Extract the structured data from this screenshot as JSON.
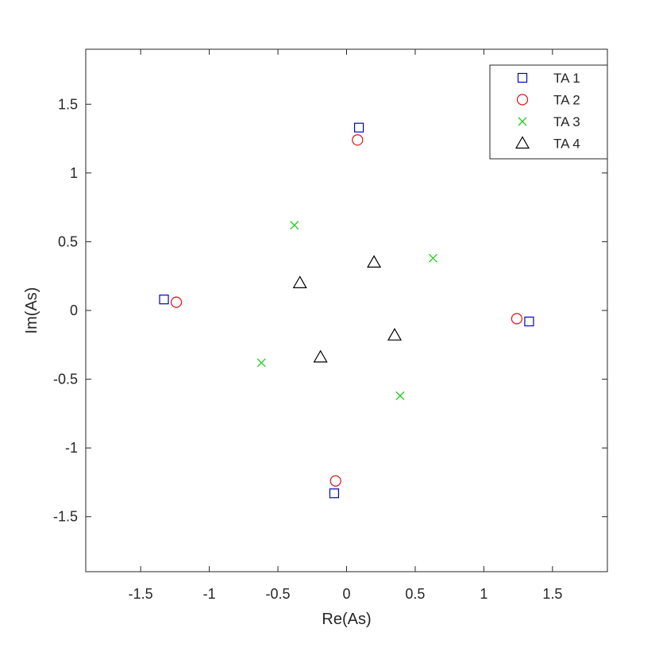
{
  "chart_data": {
    "type": "scatter",
    "title": "",
    "xlabel": "Re(As)",
    "ylabel": "Im(As)",
    "xlim": [
      -1.9,
      1.9
    ],
    "ylim": [
      -1.9,
      1.9
    ],
    "xticks": [
      -1.5,
      -1,
      -0.5,
      0,
      0.5,
      1,
      1.5
    ],
    "xtick_labels": [
      "-1.5",
      "-1",
      "-0.5",
      "0",
      "0.5",
      "1",
      "1.5"
    ],
    "yticks": [
      -1.5,
      -1,
      -0.5,
      0,
      0.5,
      1,
      1.5
    ],
    "ytick_labels": [
      "-1.5",
      "-1",
      "-0.5",
      "0",
      "0.5",
      "1",
      "1.5"
    ],
    "grid": false,
    "legend_position": "top-right",
    "series": [
      {
        "name": "TA 1",
        "marker": "square",
        "color": "#0000cc",
        "points": [
          [
            0.09,
            1.33
          ],
          [
            -1.33,
            0.08
          ],
          [
            -0.09,
            -1.33
          ],
          [
            1.33,
            -0.08
          ]
        ]
      },
      {
        "name": "TA 2",
        "marker": "circle",
        "color": "#e01010",
        "points": [
          [
            0.08,
            1.24
          ],
          [
            -1.24,
            0.06
          ],
          [
            -0.08,
            -1.24
          ],
          [
            1.24,
            -0.06
          ]
        ]
      },
      {
        "name": "TA 3",
        "marker": "x",
        "color": "#22cc22",
        "points": [
          [
            -0.38,
            0.62
          ],
          [
            0.63,
            0.38
          ],
          [
            -0.62,
            -0.38
          ],
          [
            0.39,
            -0.62
          ]
        ]
      },
      {
        "name": "TA 4",
        "marker": "triangle",
        "color": "#000000",
        "points": [
          [
            -0.34,
            0.2
          ],
          [
            0.2,
            0.35
          ],
          [
            -0.19,
            -0.34
          ],
          [
            0.35,
            -0.18
          ]
        ]
      }
    ]
  }
}
